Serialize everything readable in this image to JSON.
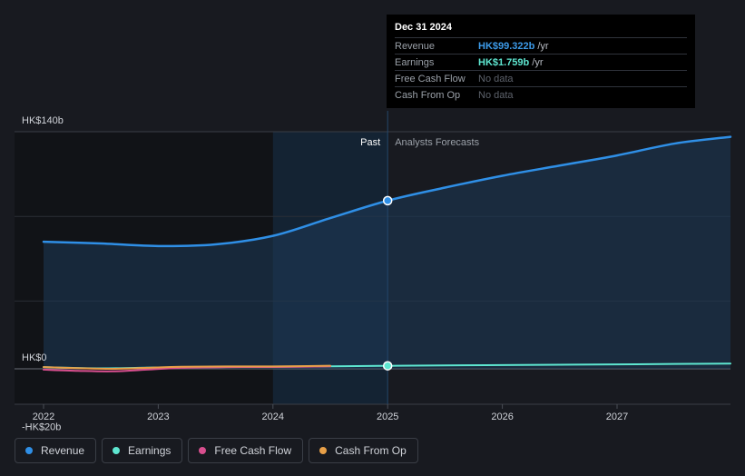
{
  "tooltip": {
    "date": "Dec 31 2024",
    "rows": [
      {
        "label": "Revenue",
        "value": "HK$99.322b",
        "unit": "/yr",
        "color": "#3c9ae8"
      },
      {
        "label": "Earnings",
        "value": "HK$1.759b",
        "unit": "/yr",
        "color": "#5ee6d0"
      },
      {
        "label": "Free Cash Flow",
        "value": "No data",
        "unit": "",
        "color": ""
      },
      {
        "label": "Cash From Op",
        "value": "No data",
        "unit": "",
        "color": ""
      }
    ]
  },
  "legend": [
    {
      "label": "Revenue",
      "color": "#2f8fe6"
    },
    {
      "label": "Earnings",
      "color": "#5ee6d0"
    },
    {
      "label": "Free Cash Flow",
      "color": "#d94f8f"
    },
    {
      "label": "Cash From Op",
      "color": "#e8a048"
    }
  ],
  "chart_data": {
    "type": "line",
    "x_ticks": [
      "2022",
      "2023",
      "2024",
      "2025",
      "2026",
      "2027"
    ],
    "y_tick_labels": [
      "HK$140b",
      "HK$0",
      "-HK$20b"
    ],
    "ylim": [
      -20,
      140
    ],
    "y_unit": "HK$ billions",
    "past_label": "Past",
    "forecast_label": "Analysts Forecasts",
    "past_forecast_divider": 2025.0,
    "shaded_past_start": 2024.0,
    "series": [
      {
        "name": "Revenue",
        "color": "#2f8fe6",
        "points": [
          [
            2022.0,
            75.0
          ],
          [
            2022.5,
            74.0
          ],
          [
            2023.0,
            72.5
          ],
          [
            2023.5,
            73.5
          ],
          [
            2024.0,
            78.5
          ],
          [
            2024.5,
            89.0
          ],
          [
            2025.0,
            99.3
          ],
          [
            2025.5,
            107.0
          ],
          [
            2026.0,
            114.0
          ],
          [
            2026.5,
            120.0
          ],
          [
            2027.0,
            126.0
          ],
          [
            2027.5,
            133.0
          ],
          [
            2028.0,
            137.0
          ]
        ]
      },
      {
        "name": "Earnings",
        "color": "#5ee6d0",
        "points": [
          [
            2022.0,
            1.0
          ],
          [
            2022.5,
            0.3
          ],
          [
            2023.0,
            0.8
          ],
          [
            2023.5,
            1.0
          ],
          [
            2024.0,
            1.2
          ],
          [
            2024.5,
            1.5
          ],
          [
            2025.0,
            1.76
          ],
          [
            2025.5,
            2.0
          ],
          [
            2026.0,
            2.2
          ],
          [
            2026.5,
            2.4
          ],
          [
            2027.0,
            2.6
          ],
          [
            2027.5,
            2.9
          ],
          [
            2028.0,
            3.1
          ]
        ]
      },
      {
        "name": "Free Cash Flow",
        "color": "#d94f8f",
        "points": [
          [
            2022.0,
            -0.5
          ],
          [
            2022.3,
            -1.2
          ],
          [
            2022.6,
            -1.5
          ],
          [
            2022.9,
            -0.5
          ],
          [
            2023.2,
            0.6
          ],
          [
            2023.6,
            1.0
          ],
          [
            2024.0,
            1.1
          ],
          [
            2024.3,
            1.3
          ],
          [
            2024.5,
            1.5
          ]
        ]
      },
      {
        "name": "Cash From Op",
        "color": "#e8a048",
        "points": [
          [
            2022.0,
            1.0
          ],
          [
            2022.3,
            0.4
          ],
          [
            2022.6,
            0.0
          ],
          [
            2022.9,
            0.6
          ],
          [
            2023.2,
            1.2
          ],
          [
            2023.6,
            1.4
          ],
          [
            2024.0,
            1.4
          ],
          [
            2024.3,
            1.6
          ],
          [
            2024.5,
            1.8
          ]
        ]
      }
    ],
    "highlight_x": 2025.0
  }
}
